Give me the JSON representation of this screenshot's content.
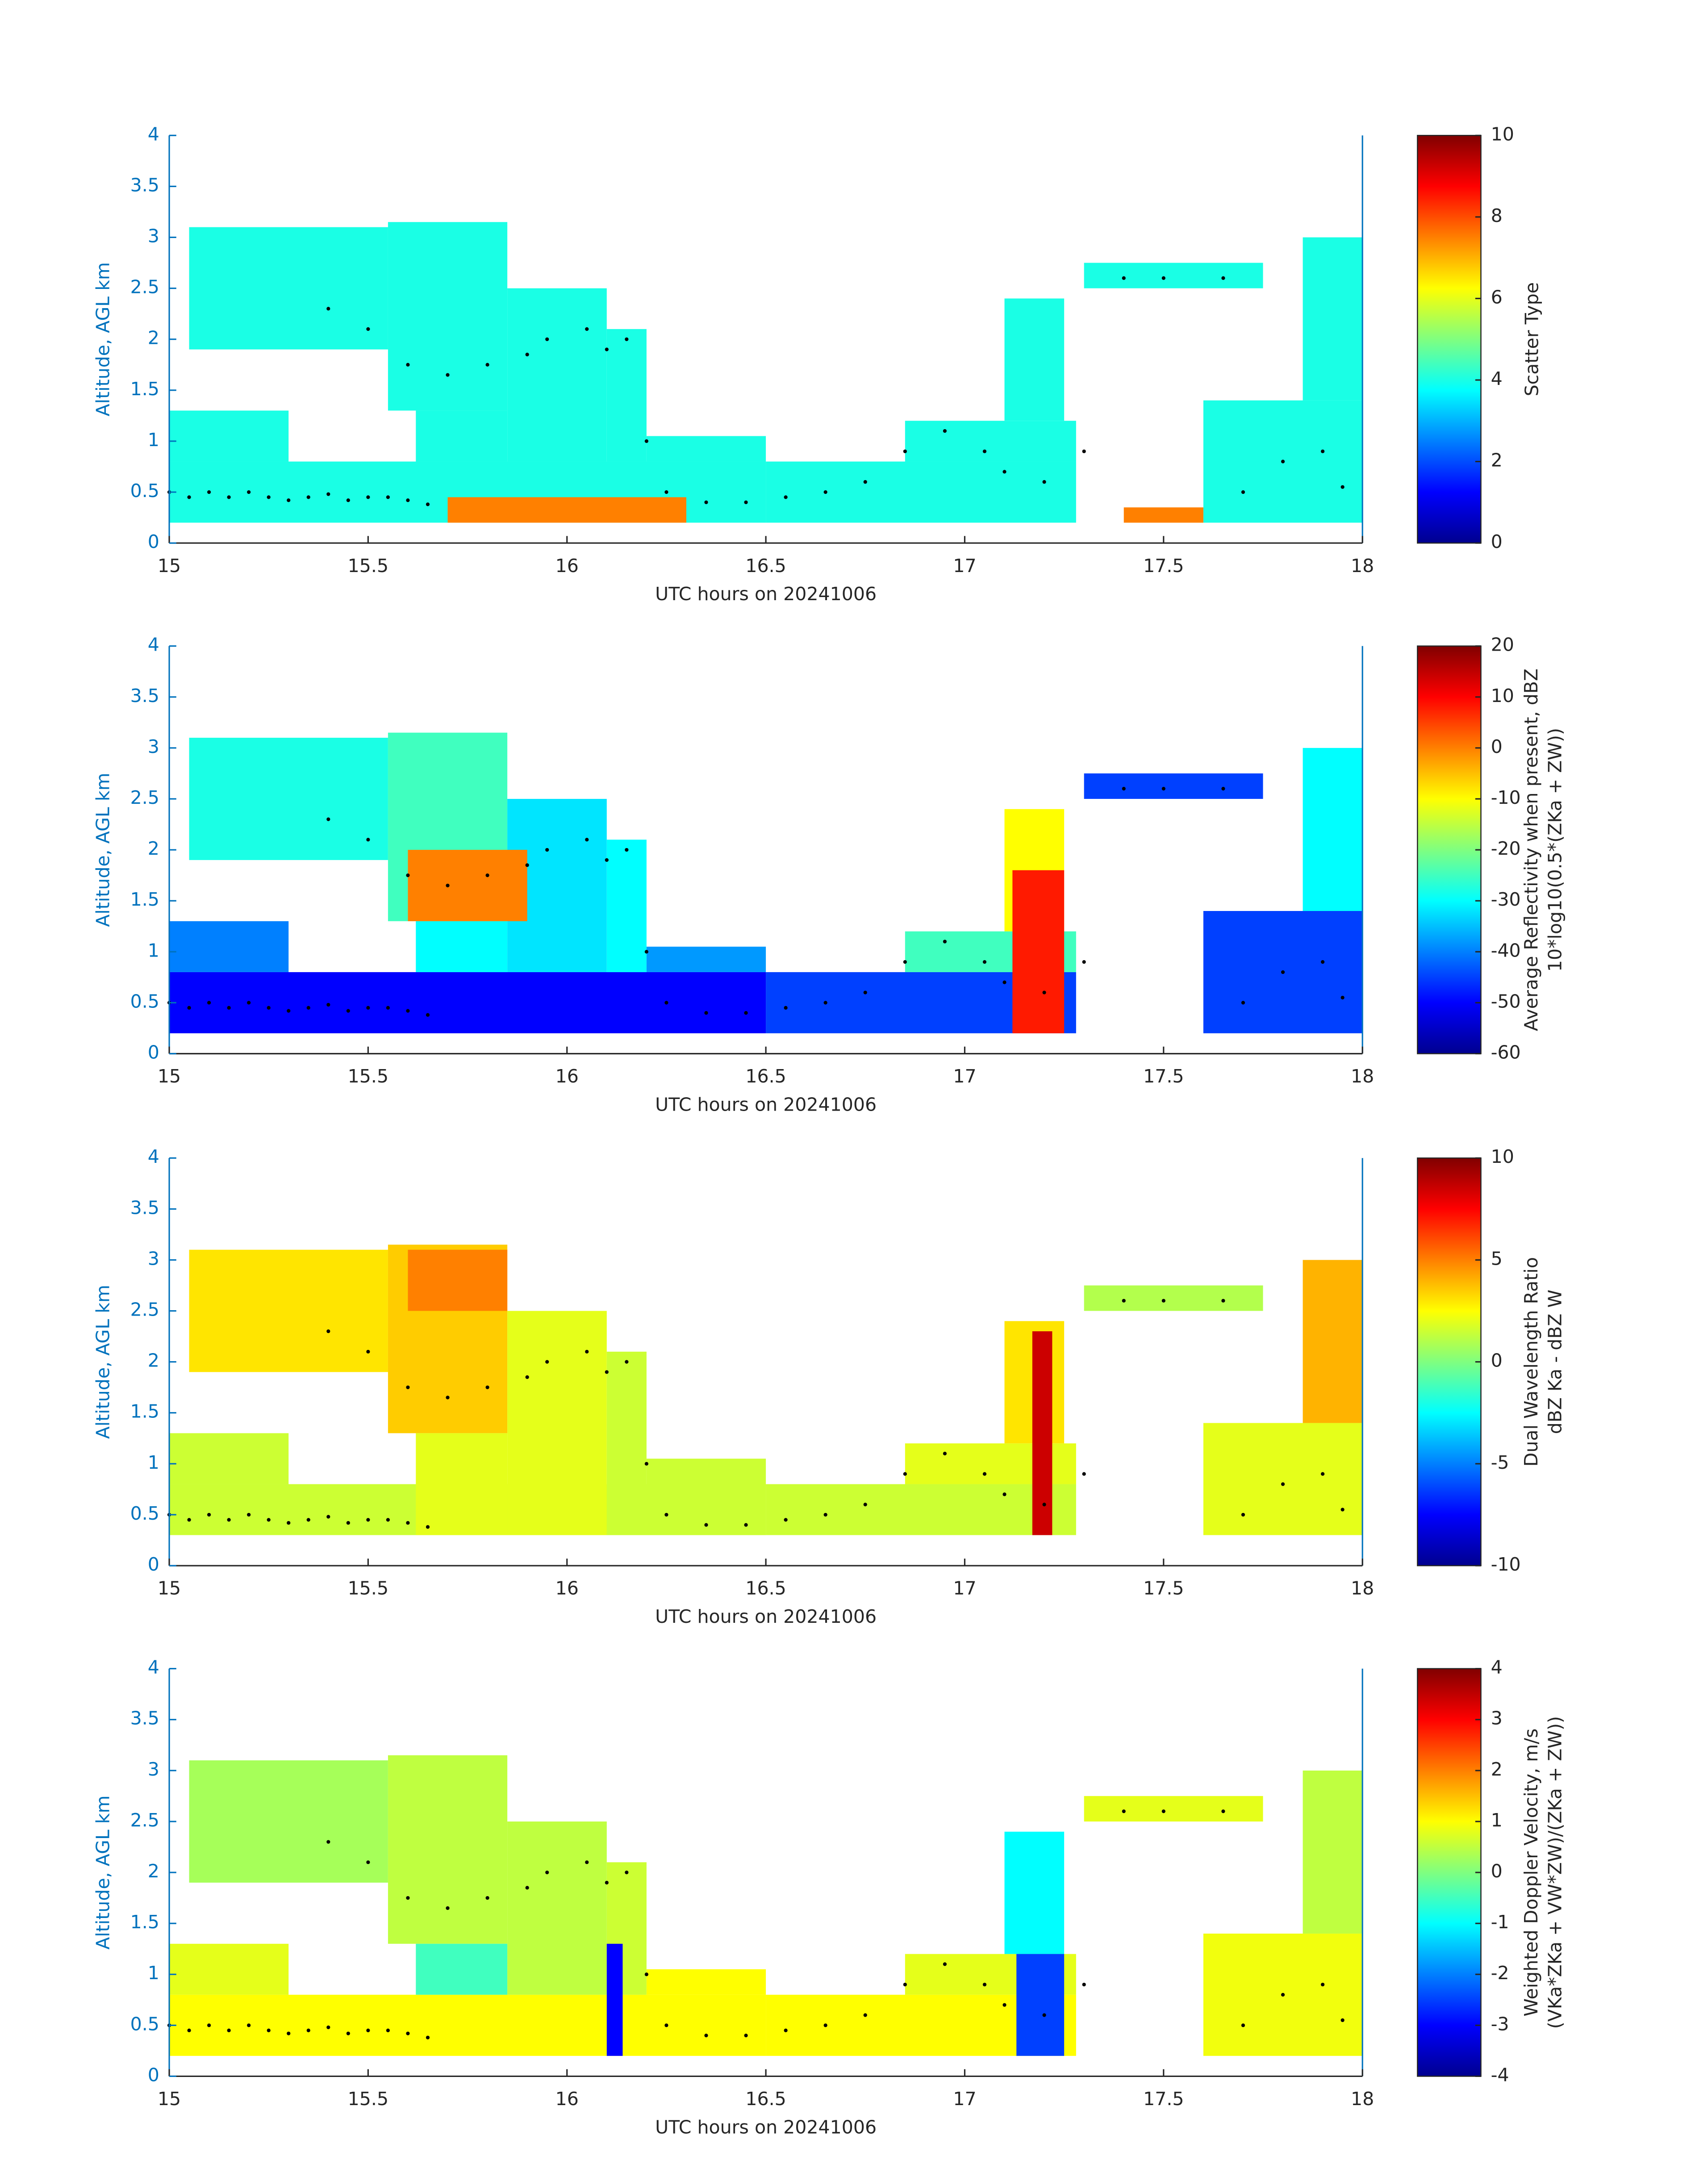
{
  "chart_data": [
    {
      "type": "heatmap",
      "xlabel": "UTC hours on 20241006",
      "ylabel": "Altitude, AGL km",
      "xlim": [
        15,
        18
      ],
      "xticks": [
        15,
        15.5,
        16,
        16.5,
        17,
        17.5,
        18
      ],
      "ylim": [
        0,
        4
      ],
      "yticks": [
        0,
        0.5,
        1,
        1.5,
        2,
        2.5,
        3,
        3.5,
        4
      ],
      "colorbar": {
        "label": [
          "Scatter Type"
        ],
        "lim": [
          0,
          10
        ],
        "ticks": [
          0,
          2,
          4,
          6,
          8,
          10
        ]
      },
      "cells": [
        {
          "x": [
            15.0,
            16.5
          ],
          "y": [
            0.2,
            0.8
          ],
          "value": 4
        },
        {
          "x": [
            15.0,
            15.3
          ],
          "y": [
            0.8,
            1.3
          ],
          "value": 4
        },
        {
          "x": [
            15.05,
            15.55
          ],
          "y": [
            1.9,
            3.1
          ],
          "value": 4
        },
        {
          "x": [
            15.55,
            15.85
          ],
          "y": [
            1.3,
            3.15
          ],
          "value": 4
        },
        {
          "x": [
            15.62,
            15.85
          ],
          "y": [
            0.8,
            1.3
          ],
          "value": 4
        },
        {
          "x": [
            15.85,
            16.1
          ],
          "y": [
            0.8,
            2.5
          ],
          "value": 4
        },
        {
          "x": [
            16.1,
            16.2
          ],
          "y": [
            0.8,
            2.1
          ],
          "value": 4
        },
        {
          "x": [
            16.2,
            16.5
          ],
          "y": [
            0.8,
            1.05
          ],
          "value": 4
        },
        {
          "x": [
            16.5,
            17.28
          ],
          "y": [
            0.2,
            0.8
          ],
          "value": 4
        },
        {
          "x": [
            16.85,
            17.28
          ],
          "y": [
            0.8,
            1.2
          ],
          "value": 4
        },
        {
          "x": [
            17.1,
            17.25
          ],
          "y": [
            1.2,
            2.4
          ],
          "value": 4
        },
        {
          "x": [
            17.3,
            17.75
          ],
          "y": [
            2.5,
            2.75
          ],
          "value": 4
        },
        {
          "x": [
            17.6,
            18.0
          ],
          "y": [
            0.2,
            1.4
          ],
          "value": 4
        },
        {
          "x": [
            17.85,
            18.0
          ],
          "y": [
            1.4,
            3.0
          ],
          "value": 4
        },
        {
          "x": [
            15.7,
            16.3
          ],
          "y": [
            0.2,
            0.45
          ],
          "value": 7.5
        },
        {
          "x": [
            17.4,
            17.6
          ],
          "y": [
            0.2,
            0.35
          ],
          "value": 7.5
        }
      ],
      "points": {
        "x": [
          15.0,
          15.05,
          15.1,
          15.15,
          15.2,
          15.25,
          15.3,
          15.35,
          15.4,
          15.45,
          15.5,
          15.55,
          15.6,
          15.65,
          15.4,
          15.5,
          15.6,
          15.7,
          15.8,
          15.9,
          15.95,
          16.05,
          16.1,
          16.15,
          16.2,
          16.25,
          16.35,
          16.45,
          16.55,
          16.65,
          16.75,
          16.85,
          16.95,
          17.05,
          17.1,
          17.2,
          17.3,
          17.4,
          17.5,
          17.65,
          17.7,
          17.8,
          17.9,
          17.95
        ],
        "y": [
          0.5,
          0.45,
          0.5,
          0.45,
          0.5,
          0.45,
          0.42,
          0.45,
          0.48,
          0.42,
          0.45,
          0.45,
          0.42,
          0.38,
          2.3,
          2.1,
          1.75,
          1.65,
          1.75,
          1.85,
          2.0,
          2.1,
          1.9,
          2.0,
          1.0,
          0.5,
          0.4,
          0.4,
          0.45,
          0.5,
          0.6,
          0.9,
          1.1,
          0.9,
          0.7,
          0.6,
          0.9,
          2.6,
          2.6,
          2.6,
          0.5,
          0.8,
          0.9,
          0.55
        ]
      }
    },
    {
      "type": "heatmap",
      "xlabel": "UTC hours on 20241006",
      "ylabel": "Altitude, AGL km",
      "xlim": [
        15,
        18
      ],
      "xticks": [
        15,
        15.5,
        16,
        16.5,
        17,
        17.5,
        18
      ],
      "ylim": [
        0,
        4
      ],
      "yticks": [
        0,
        0.5,
        1,
        1.5,
        2,
        2.5,
        3,
        3.5,
        4
      ],
      "colorbar": {
        "label": [
          "Average Reflectivity when present, dBZ",
          "10*log10(0.5*(ZKa + ZW))"
        ],
        "lim": [
          -60,
          20
        ],
        "ticks": [
          -60,
          -50,
          -40,
          -30,
          -20,
          -10,
          0,
          10,
          20
        ]
      },
      "cells": [
        {
          "x": [
            15.0,
            16.5
          ],
          "y": [
            0.2,
            0.8
          ],
          "value": -50
        },
        {
          "x": [
            15.0,
            15.3
          ],
          "y": [
            0.8,
            1.3
          ],
          "value": -40
        },
        {
          "x": [
            15.05,
            15.55
          ],
          "y": [
            1.9,
            3.1
          ],
          "value": -28
        },
        {
          "x": [
            15.55,
            15.85
          ],
          "y": [
            1.3,
            3.15
          ],
          "value": -25
        },
        {
          "x": [
            15.62,
            15.85
          ],
          "y": [
            0.8,
            1.3
          ],
          "value": -30
        },
        {
          "x": [
            15.85,
            16.1
          ],
          "y": [
            0.8,
            2.5
          ],
          "value": -32
        },
        {
          "x": [
            16.1,
            16.2
          ],
          "y": [
            0.8,
            2.1
          ],
          "value": -30
        },
        {
          "x": [
            16.2,
            16.5
          ],
          "y": [
            0.8,
            1.05
          ],
          "value": -38
        },
        {
          "x": [
            16.5,
            17.28
          ],
          "y": [
            0.2,
            0.8
          ],
          "value": -45
        },
        {
          "x": [
            16.85,
            17.28
          ],
          "y": [
            0.8,
            1.2
          ],
          "value": -25
        },
        {
          "x": [
            17.1,
            17.25
          ],
          "y": [
            1.2,
            2.4
          ],
          "value": -10
        },
        {
          "x": [
            17.3,
            17.75
          ],
          "y": [
            2.5,
            2.75
          ],
          "value": -45
        },
        {
          "x": [
            17.6,
            18.0
          ],
          "y": [
            0.2,
            1.4
          ],
          "value": -45
        },
        {
          "x": [
            17.85,
            18.0
          ],
          "y": [
            1.4,
            3.0
          ],
          "value": -30
        },
        {
          "x": [
            15.6,
            15.9
          ],
          "y": [
            1.3,
            2.0
          ],
          "value": 0
        },
        {
          "x": [
            17.12,
            17.25
          ],
          "y": [
            0.2,
            1.8
          ],
          "value": 8
        }
      ]
    },
    {
      "type": "heatmap",
      "xlabel": "UTC hours on 20241006",
      "ylabel": "Altitude, AGL km",
      "xlim": [
        15,
        18
      ],
      "xticks": [
        15,
        15.5,
        16,
        16.5,
        17,
        17.5,
        18
      ],
      "ylim": [
        0,
        4
      ],
      "yticks": [
        0,
        0.5,
        1,
        1.5,
        2,
        2.5,
        3,
        3.5,
        4
      ],
      "colorbar": {
        "label": [
          "Dual Wavelength Ratio",
          "dBZ Ka - dBZ W"
        ],
        "lim": [
          -10,
          10
        ],
        "ticks": [
          -10,
          -5,
          0,
          5,
          10
        ]
      },
      "cells": [
        {
          "x": [
            15.0,
            16.5
          ],
          "y": [
            0.3,
            0.8
          ],
          "value": 1.5
        },
        {
          "x": [
            15.0,
            15.3
          ],
          "y": [
            0.8,
            1.3
          ],
          "value": 1.5
        },
        {
          "x": [
            15.05,
            15.55
          ],
          "y": [
            1.9,
            3.1
          ],
          "value": 3
        },
        {
          "x": [
            15.55,
            15.85
          ],
          "y": [
            1.3,
            3.15
          ],
          "value": 3.5
        },
        {
          "x": [
            15.62,
            15.85
          ],
          "y": [
            0.3,
            1.3
          ],
          "value": 2
        },
        {
          "x": [
            15.85,
            16.1
          ],
          "y": [
            0.3,
            2.5
          ],
          "value": 2
        },
        {
          "x": [
            16.1,
            16.2
          ],
          "y": [
            0.3,
            2.1
          ],
          "value": 1.5
        },
        {
          "x": [
            16.2,
            16.5
          ],
          "y": [
            0.3,
            1.05
          ],
          "value": 1.5
        },
        {
          "x": [
            16.5,
            17.28
          ],
          "y": [
            0.3,
            0.8
          ],
          "value": 1.5
        },
        {
          "x": [
            16.85,
            17.28
          ],
          "y": [
            0.8,
            1.2
          ],
          "value": 2
        },
        {
          "x": [
            17.1,
            17.25
          ],
          "y": [
            1.2,
            2.4
          ],
          "value": 3
        },
        {
          "x": [
            17.3,
            17.75
          ],
          "y": [
            2.5,
            2.75
          ],
          "value": 1
        },
        {
          "x": [
            17.6,
            18.0
          ],
          "y": [
            0.3,
            1.4
          ],
          "value": 2
        },
        {
          "x": [
            17.85,
            18.0
          ],
          "y": [
            1.4,
            3.0
          ],
          "value": 4
        },
        {
          "x": [
            15.6,
            15.85
          ],
          "y": [
            2.5,
            3.1
          ],
          "value": 5
        },
        {
          "x": [
            17.17,
            17.22
          ],
          "y": [
            0.3,
            2.3
          ],
          "value": 8.5
        }
      ]
    },
    {
      "type": "heatmap",
      "xlabel": "UTC hours on 20241006",
      "ylabel": "Altitude, AGL km",
      "xlim": [
        15,
        18
      ],
      "xticks": [
        15,
        15.5,
        16,
        16.5,
        17,
        17.5,
        18
      ],
      "ylim": [
        0,
        4
      ],
      "yticks": [
        0,
        0.5,
        1,
        1.5,
        2,
        2.5,
        3,
        3.5,
        4
      ],
      "colorbar": {
        "label": [
          "Weighted Doppler Velocity, m/s",
          "(VKa*ZKa + VW*ZW)/(ZKa + ZW))"
        ],
        "lim": [
          -4,
          4
        ],
        "ticks": [
          -4,
          -3,
          -2,
          -1,
          0,
          1,
          2,
          3,
          4
        ]
      },
      "cells": [
        {
          "x": [
            15.0,
            16.5
          ],
          "y": [
            0.2,
            0.8
          ],
          "value": 1
        },
        {
          "x": [
            15.0,
            15.3
          ],
          "y": [
            0.8,
            1.3
          ],
          "value": 0.8
        },
        {
          "x": [
            15.05,
            15.55
          ],
          "y": [
            1.9,
            3.1
          ],
          "value": 0.3
        },
        {
          "x": [
            15.55,
            15.85
          ],
          "y": [
            1.3,
            3.15
          ],
          "value": 0.5
        },
        {
          "x": [
            15.62,
            15.85
          ],
          "y": [
            0.8,
            1.3
          ],
          "value": -0.5
        },
        {
          "x": [
            15.85,
            16.1
          ],
          "y": [
            0.8,
            2.5
          ],
          "value": 0.5
        },
        {
          "x": [
            16.1,
            16.2
          ],
          "y": [
            0.8,
            2.1
          ],
          "value": 0.6
        },
        {
          "x": [
            16.2,
            16.5
          ],
          "y": [
            0.8,
            1.05
          ],
          "value": 1
        },
        {
          "x": [
            16.5,
            17.28
          ],
          "y": [
            0.2,
            0.8
          ],
          "value": 1
        },
        {
          "x": [
            16.85,
            17.28
          ],
          "y": [
            0.8,
            1.2
          ],
          "value": 0.8
        },
        {
          "x": [
            17.1,
            17.25
          ],
          "y": [
            1.2,
            2.4
          ],
          "value": -1
        },
        {
          "x": [
            17.3,
            17.75
          ],
          "y": [
            2.5,
            2.75
          ],
          "value": 0.8
        },
        {
          "x": [
            17.6,
            18.0
          ],
          "y": [
            0.2,
            1.4
          ],
          "value": 0.9
        },
        {
          "x": [
            17.85,
            18.0
          ],
          "y": [
            1.4,
            3.0
          ],
          "value": 0.5
        },
        {
          "x": [
            16.1,
            16.14
          ],
          "y": [
            0.2,
            1.3
          ],
          "value": -3
        },
        {
          "x": [
            17.13,
            17.25
          ],
          "y": [
            0.2,
            1.2
          ],
          "value": -2.5
        }
      ]
    }
  ]
}
